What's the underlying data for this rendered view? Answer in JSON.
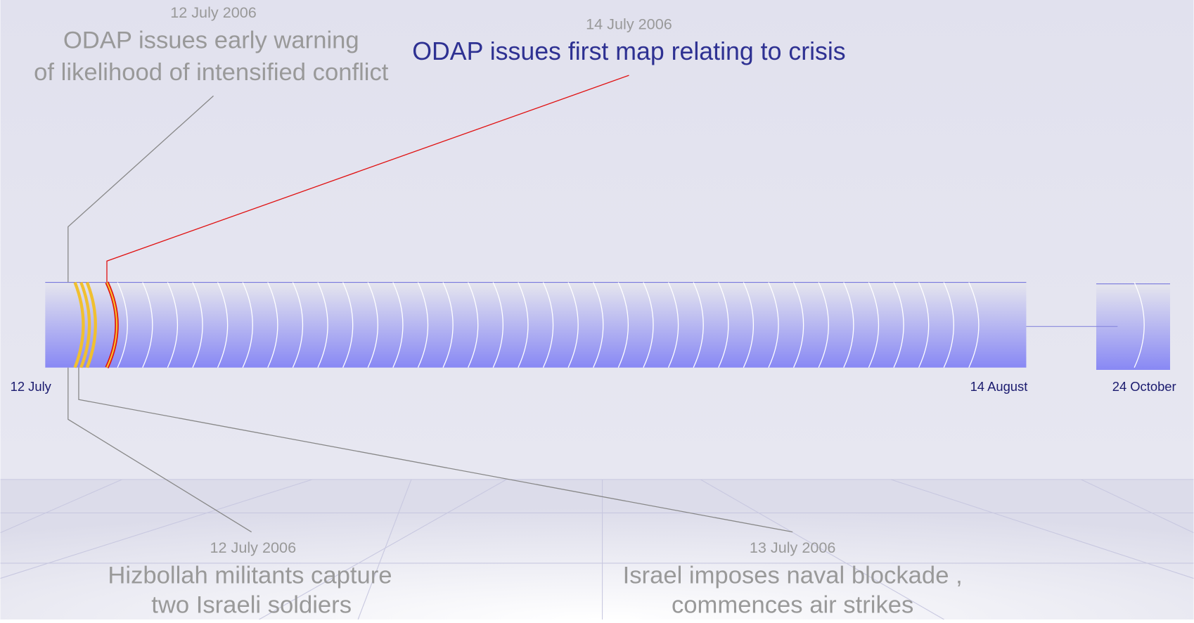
{
  "events": [
    {
      "date": "12 July 2006",
      "lines": [
        "ODAP issues early warning",
        "of likelihood of intensified conflict"
      ]
    },
    {
      "date": "14 July 2006",
      "lines": [
        "ODAP issues first map relating to crisis"
      ]
    },
    {
      "date": "12 July 2006",
      "lines": [
        "Hizbollah militants capture",
        "two Israeli soldiers"
      ]
    },
    {
      "date": "13 July 2006",
      "lines": [
        "Israel imposes naval blockade ,",
        "commences air strikes"
      ]
    }
  ],
  "axis_labels": [
    "12 July",
    "14 August",
    "24 October"
  ]
}
